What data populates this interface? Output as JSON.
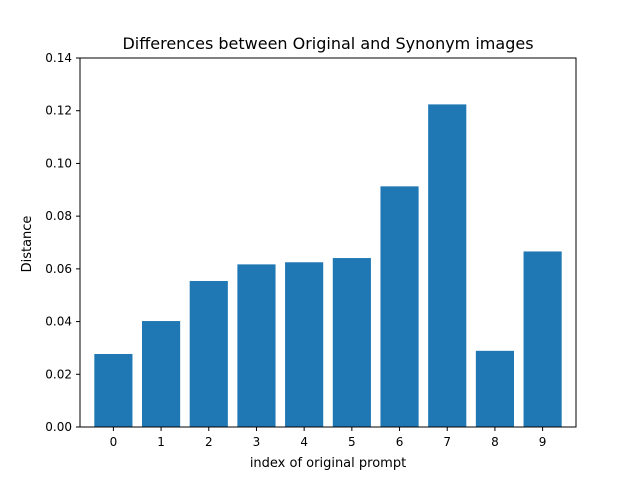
{
  "chart_data": {
    "type": "bar",
    "title": "Differences between Original and Synonym images",
    "xlabel": "index of original prompt",
    "ylabel": "Distance",
    "categories": [
      "0",
      "1",
      "2",
      "3",
      "4",
      "5",
      "6",
      "7",
      "8",
      "9"
    ],
    "values": [
      0.0277,
      0.0402,
      0.0554,
      0.0617,
      0.0625,
      0.0641,
      0.0913,
      0.1224,
      0.0289,
      0.0666
    ],
    "ylim": [
      0,
      0.14
    ],
    "yticks": [
      "0.00",
      "0.02",
      "0.04",
      "0.06",
      "0.08",
      "0.10",
      "0.12",
      "0.14"
    ],
    "bar_color": "#1f77b4",
    "grid": false
  }
}
